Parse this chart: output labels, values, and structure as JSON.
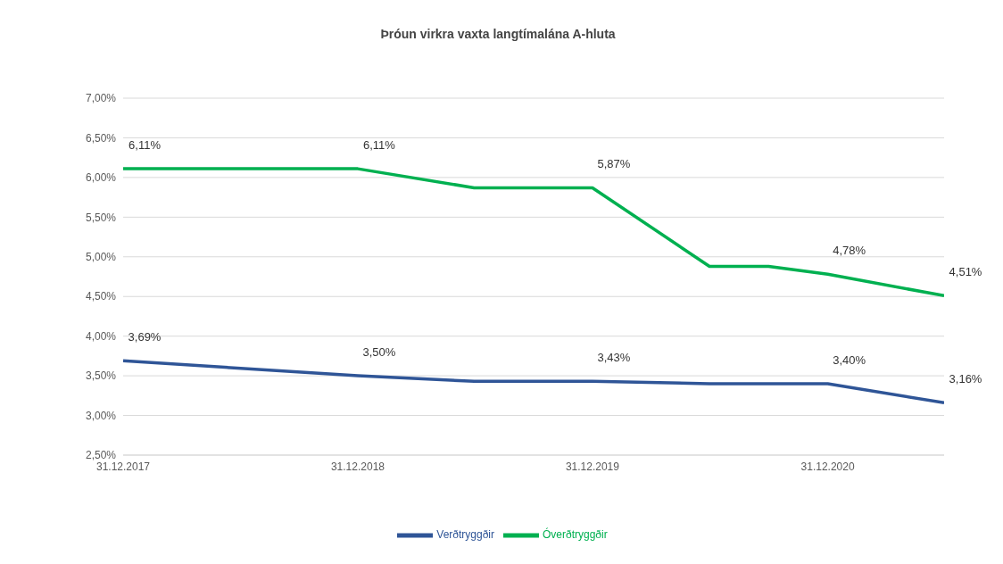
{
  "chart_data": {
    "type": "line",
    "title": "Þróun virkra vaxta langtímalána A-hluta",
    "x": [
      "2017-12-31",
      "2018-12-31",
      "2019-06-30",
      "2019-12-31",
      "2020-06-30",
      "2020-09-30",
      "2020-12-31",
      "2021-06-30"
    ],
    "series": [
      {
        "name": "Verðtryggðir",
        "color": "#2f5597",
        "values": [
          3.69,
          3.5,
          3.43,
          3.43,
          3.4,
          3.4,
          3.4,
          3.16
        ],
        "value_labels": [
          "3,69%",
          "3,50%",
          null,
          "3,43%",
          null,
          null,
          "3,40%",
          "3,16%"
        ]
      },
      {
        "name": "Óverðtryggðir",
        "color": "#00b050",
        "values": [
          6.11,
          6.11,
          5.87,
          5.87,
          4.88,
          4.88,
          4.78,
          4.51
        ],
        "value_labels": [
          "6,11%",
          "6,11%",
          null,
          "5,87%",
          null,
          null,
          "4,78%",
          "4,51%"
        ]
      }
    ],
    "xlim": [
      "2017-12-31",
      "2021-06-30"
    ],
    "xticks": [
      {
        "value": "2017-12-31",
        "label": "31.12.2017"
      },
      {
        "value": "2018-12-31",
        "label": "31.12.2018"
      },
      {
        "value": "2019-12-31",
        "label": "31.12.2019"
      },
      {
        "value": "2020-12-31",
        "label": "31.12.2020"
      }
    ],
    "ylim": [
      2.5,
      7.0
    ],
    "yticks": [
      {
        "value": 2.5,
        "label": "2,50%"
      },
      {
        "value": 3.0,
        "label": "3,00%"
      },
      {
        "value": 3.5,
        "label": "3,50%"
      },
      {
        "value": 4.0,
        "label": "4,00%"
      },
      {
        "value": 4.5,
        "label": "4,50%"
      },
      {
        "value": 5.0,
        "label": "5,00%"
      },
      {
        "value": 5.5,
        "label": "5,50%"
      },
      {
        "value": 6.0,
        "label": "6,00%"
      },
      {
        "value": 6.5,
        "label": "6,50%"
      },
      {
        "value": 7.0,
        "label": "7,00%"
      }
    ],
    "grid": "y",
    "legend": "bottom",
    "marker": "none",
    "line_style": "solid"
  }
}
